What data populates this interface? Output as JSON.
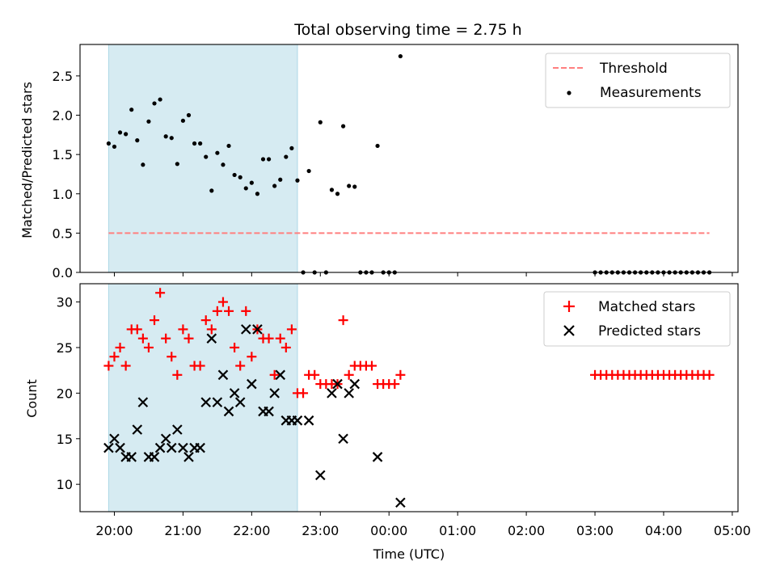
{
  "chart_data": [
    {
      "type": "scatter",
      "title": "Total observing time = 2.75 h",
      "ylabel": "Matched/Predicted stars",
      "xlabel": "",
      "xlim": [
        "19:30",
        "05:05"
      ],
      "ylim": [
        0,
        2.9
      ],
      "yticks": [
        0.0,
        0.5,
        1.0,
        1.5,
        2.0,
        2.5
      ],
      "grid": false,
      "legend_position": "top-right",
      "shaded_interval": [
        "19:55",
        "22:40"
      ],
      "shade_color": "#add8e6",
      "threshold": {
        "name": "Threshold",
        "value": 0.5,
        "x_range": [
          "19:55",
          "04:40"
        ],
        "color": "#ff7f7f"
      },
      "series": [
        {
          "name": "Measurements",
          "color": "#000000",
          "points": [
            [
              "19:55",
              1.64
            ],
            [
              "20:00",
              1.6
            ],
            [
              "20:05",
              1.78
            ],
            [
              "20:10",
              1.76
            ],
            [
              "20:15",
              2.07
            ],
            [
              "20:20",
              1.68
            ],
            [
              "20:25",
              1.37
            ],
            [
              "20:30",
              1.92
            ],
            [
              "20:35",
              2.15
            ],
            [
              "20:40",
              2.2
            ],
            [
              "20:45",
              1.73
            ],
            [
              "20:50",
              1.71
            ],
            [
              "20:55",
              1.38
            ],
            [
              "21:00",
              1.93
            ],
            [
              "21:05",
              2.0
            ],
            [
              "21:10",
              1.64
            ],
            [
              "21:15",
              1.64
            ],
            [
              "21:20",
              1.47
            ],
            [
              "21:25",
              1.04
            ],
            [
              "21:30",
              1.52
            ],
            [
              "21:35",
              1.37
            ],
            [
              "21:40",
              1.61
            ],
            [
              "21:45",
              1.24
            ],
            [
              "21:50",
              1.21
            ],
            [
              "21:55",
              1.07
            ],
            [
              "22:00",
              1.14
            ],
            [
              "22:05",
              1.0
            ],
            [
              "22:10",
              1.44
            ],
            [
              "22:15",
              1.44
            ],
            [
              "22:20",
              1.1
            ],
            [
              "22:25",
              1.18
            ],
            [
              "22:30",
              1.47
            ],
            [
              "22:35",
              1.58
            ],
            [
              "22:40",
              1.17
            ],
            [
              "22:45",
              0.0
            ],
            [
              "22:50",
              1.29
            ],
            [
              "22:55",
              0.0
            ],
            [
              "23:00",
              1.91
            ],
            [
              "23:05",
              0.0
            ],
            [
              "23:10",
              1.05
            ],
            [
              "23:15",
              1.0
            ],
            [
              "23:20",
              1.86
            ],
            [
              "23:25",
              1.1
            ],
            [
              "23:30",
              1.09
            ],
            [
              "23:35",
              0.0
            ],
            [
              "23:40",
              0.0
            ],
            [
              "23:45",
              0.0
            ],
            [
              "23:50",
              1.61
            ],
            [
              "23:55",
              0.0
            ],
            [
              "00:00",
              0.0
            ],
            [
              "00:05",
              0.0
            ],
            [
              "00:10",
              2.75
            ],
            [
              "03:00",
              0.0
            ],
            [
              "03:05",
              0.0
            ],
            [
              "03:10",
              0.0
            ],
            [
              "03:15",
              0.0
            ],
            [
              "03:20",
              0.0
            ],
            [
              "03:25",
              0.0
            ],
            [
              "03:30",
              0.0
            ],
            [
              "03:35",
              0.0
            ],
            [
              "03:40",
              0.0
            ],
            [
              "03:45",
              0.0
            ],
            [
              "03:50",
              0.0
            ],
            [
              "03:55",
              0.0
            ],
            [
              "04:00",
              0.0
            ],
            [
              "04:05",
              0.0
            ],
            [
              "04:10",
              0.0
            ],
            [
              "04:15",
              0.0
            ],
            [
              "04:20",
              0.0
            ],
            [
              "04:25",
              0.0
            ],
            [
              "04:30",
              0.0
            ],
            [
              "04:35",
              0.0
            ],
            [
              "04:40",
              0.0
            ]
          ]
        }
      ]
    },
    {
      "type": "scatter",
      "title": "",
      "ylabel": "Count",
      "xlabel": "Time (UTC)",
      "xlim": [
        "19:30",
        "05:05"
      ],
      "ylim": [
        7,
        32
      ],
      "yticks": [
        10,
        15,
        20,
        25,
        30
      ],
      "xticks": [
        "20:00",
        "21:00",
        "22:00",
        "23:00",
        "00:00",
        "01:00",
        "02:00",
        "03:00",
        "04:00",
        "05:00"
      ],
      "grid": false,
      "legend_position": "top-right",
      "shaded_interval": [
        "19:55",
        "22:40"
      ],
      "shade_color": "#add8e6",
      "series": [
        {
          "name": "Matched stars",
          "marker": "+",
          "color": "#ff0000",
          "points": [
            [
              "19:55",
              23
            ],
            [
              "20:00",
              24
            ],
            [
              "20:05",
              25
            ],
            [
              "20:10",
              23
            ],
            [
              "20:15",
              27
            ],
            [
              "20:20",
              27
            ],
            [
              "20:25",
              26
            ],
            [
              "20:30",
              25
            ],
            [
              "20:35",
              28
            ],
            [
              "20:40",
              31
            ],
            [
              "20:45",
              26
            ],
            [
              "20:50",
              24
            ],
            [
              "20:55",
              22
            ],
            [
              "21:00",
              27
            ],
            [
              "21:05",
              26
            ],
            [
              "21:10",
              23
            ],
            [
              "21:15",
              23
            ],
            [
              "21:20",
              28
            ],
            [
              "21:25",
              27
            ],
            [
              "21:30",
              29
            ],
            [
              "21:35",
              30
            ],
            [
              "21:40",
              29
            ],
            [
              "21:45",
              25
            ],
            [
              "21:50",
              23
            ],
            [
              "21:55",
              29
            ],
            [
              "22:00",
              24
            ],
            [
              "22:05",
              27
            ],
            [
              "22:10",
              26
            ],
            [
              "22:15",
              26
            ],
            [
              "22:20",
              22
            ],
            [
              "22:25",
              26
            ],
            [
              "22:30",
              25
            ],
            [
              "22:35",
              27
            ],
            [
              "22:40",
              20
            ],
            [
              "22:45",
              20
            ],
            [
              "22:50",
              22
            ],
            [
              "22:55",
              22
            ],
            [
              "23:00",
              21
            ],
            [
              "23:05",
              21
            ],
            [
              "23:10",
              21
            ],
            [
              "23:15",
              21
            ],
            [
              "23:20",
              28
            ],
            [
              "23:25",
              22
            ],
            [
              "23:30",
              23
            ],
            [
              "23:35",
              23
            ],
            [
              "23:40",
              23
            ],
            [
              "23:45",
              23
            ],
            [
              "23:50",
              21
            ],
            [
              "23:55",
              21
            ],
            [
              "00:00",
              21
            ],
            [
              "00:05",
              21
            ],
            [
              "00:10",
              22
            ],
            [
              "03:00",
              22
            ],
            [
              "03:05",
              22
            ],
            [
              "03:10",
              22
            ],
            [
              "03:15",
              22
            ],
            [
              "03:20",
              22
            ],
            [
              "03:25",
              22
            ],
            [
              "03:30",
              22
            ],
            [
              "03:35",
              22
            ],
            [
              "03:40",
              22
            ],
            [
              "03:45",
              22
            ],
            [
              "03:50",
              22
            ],
            [
              "03:55",
              22
            ],
            [
              "04:00",
              22
            ],
            [
              "04:05",
              22
            ],
            [
              "04:10",
              22
            ],
            [
              "04:15",
              22
            ],
            [
              "04:20",
              22
            ],
            [
              "04:25",
              22
            ],
            [
              "04:30",
              22
            ],
            [
              "04:35",
              22
            ],
            [
              "04:40",
              22
            ]
          ]
        },
        {
          "name": "Predicted stars",
          "marker": "x",
          "color": "#000000",
          "points": [
            [
              "19:55",
              14
            ],
            [
              "20:00",
              15
            ],
            [
              "20:05",
              14
            ],
            [
              "20:10",
              13
            ],
            [
              "20:15",
              13
            ],
            [
              "20:20",
              16
            ],
            [
              "20:25",
              19
            ],
            [
              "20:30",
              13
            ],
            [
              "20:35",
              13
            ],
            [
              "20:40",
              14
            ],
            [
              "20:45",
              15
            ],
            [
              "20:50",
              14
            ],
            [
              "20:55",
              16
            ],
            [
              "21:00",
              14
            ],
            [
              "21:05",
              13
            ],
            [
              "21:10",
              14
            ],
            [
              "21:15",
              14
            ],
            [
              "21:20",
              19
            ],
            [
              "21:25",
              26
            ],
            [
              "21:30",
              19
            ],
            [
              "21:35",
              22
            ],
            [
              "21:40",
              18
            ],
            [
              "21:45",
              20
            ],
            [
              "21:50",
              19
            ],
            [
              "21:55",
              27
            ],
            [
              "22:00",
              21
            ],
            [
              "22:05",
              27
            ],
            [
              "22:10",
              18
            ],
            [
              "22:15",
              18
            ],
            [
              "22:20",
              20
            ],
            [
              "22:25",
              22
            ],
            [
              "22:30",
              17
            ],
            [
              "22:35",
              17
            ],
            [
              "22:40",
              17
            ],
            [
              "22:50",
              17
            ],
            [
              "23:00",
              11
            ],
            [
              "23:10",
              20
            ],
            [
              "23:15",
              21
            ],
            [
              "23:20",
              15
            ],
            [
              "23:25",
              20
            ],
            [
              "23:30",
              21
            ],
            [
              "23:50",
              13
            ],
            [
              "00:10",
              8
            ]
          ]
        }
      ]
    }
  ]
}
